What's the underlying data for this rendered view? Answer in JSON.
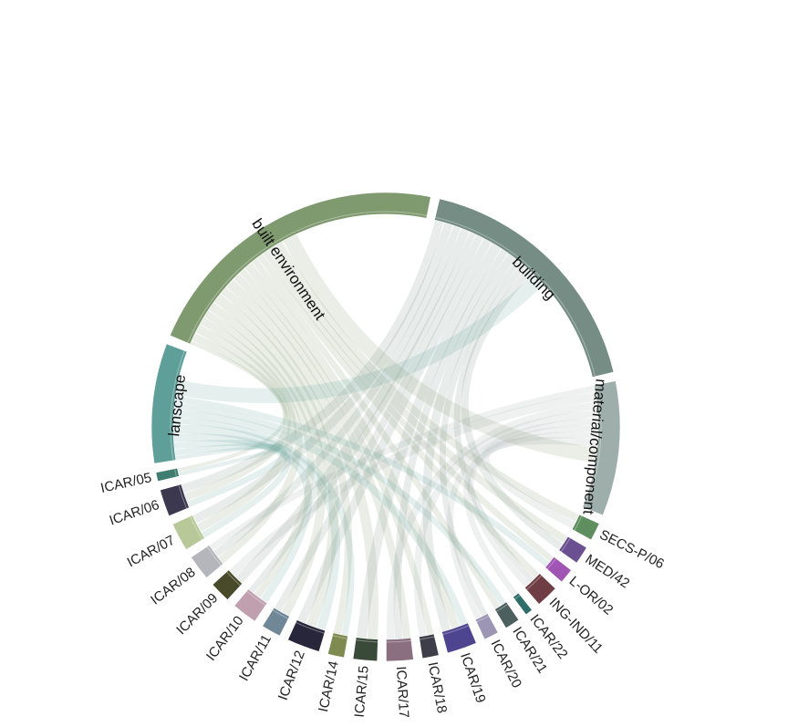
{
  "chart_data": {
    "type": "chord",
    "title": "",
    "groups": [
      {
        "name": "lanscape",
        "color": "#5f9f99",
        "value": 8
      },
      {
        "name": "built environment",
        "color": "#809a70",
        "value": 21
      },
      {
        "name": "building",
        "color": "#758d84",
        "value": 17
      },
      {
        "name": "material/component",
        "color": "#9eaeaa",
        "value": 9
      },
      {
        "name": "SECS-P/06",
        "color": "#5f8f5f",
        "value": 1.2
      },
      {
        "name": "MED/42",
        "color": "#6a5090",
        "value": 1.2
      },
      {
        "name": "L-OR/02",
        "color": "#a054b4",
        "value": 1
      },
      {
        "name": "ING-IND/11",
        "color": "#6e3e44",
        "value": 1.5
      },
      {
        "name": "ICAR/22",
        "color": "#2f6d6a",
        "value": 0.5
      },
      {
        "name": "ICAR/21",
        "color": "#4d6060",
        "value": 1
      },
      {
        "name": "ICAR/20",
        "color": "#9c96b4",
        "value": 1
      },
      {
        "name": "ICAR/19",
        "color": "#4d4590",
        "value": 2
      },
      {
        "name": "ICAR/18",
        "color": "#3e3e4a",
        "value": 1.1
      },
      {
        "name": "ICAR/17",
        "color": "#8a6f80",
        "value": 1.8
      },
      {
        "name": "ICAR/15",
        "color": "#3a4a38",
        "value": 1.6
      },
      {
        "name": "ICAR/14",
        "color": "#7d8a50",
        "value": 1.1
      },
      {
        "name": "ICAR/12",
        "color": "#28263a",
        "value": 2.2
      },
      {
        "name": "ICAR/11",
        "color": "#6f8796",
        "value": 1.3
      },
      {
        "name": "ICAR/10",
        "color": "#c0a0ae",
        "value": 1.7
      },
      {
        "name": "ICAR/09",
        "color": "#484a2a",
        "value": 1.4
      },
      {
        "name": "ICAR/08",
        "color": "#b4b6bc",
        "value": 1.7
      },
      {
        "name": "ICAR/07",
        "color": "#b8c898",
        "value": 1.9
      },
      {
        "name": "ICAR/06",
        "color": "#3b3850",
        "value": 1.8
      },
      {
        "name": "ICAR/05",
        "color": "#3f7d70",
        "value": 0.6
      }
    ],
    "links": [
      {
        "source": "ICAR/05",
        "target": "lanscape",
        "value": 0.3
      },
      {
        "source": "ICAR/05",
        "target": "built environment",
        "value": 0.3
      },
      {
        "source": "ICAR/06",
        "target": "lanscape",
        "value": 0.5
      },
      {
        "source": "ICAR/06",
        "target": "built environment",
        "value": 0.6
      },
      {
        "source": "ICAR/06",
        "target": "building",
        "value": 0.7
      },
      {
        "source": "ICAR/07",
        "target": "lanscape",
        "value": 0.5
      },
      {
        "source": "ICAR/07",
        "target": "built environment",
        "value": 0.7
      },
      {
        "source": "ICAR/07",
        "target": "building",
        "value": 0.7
      },
      {
        "source": "ICAR/08",
        "target": "built environment",
        "value": 0.6
      },
      {
        "source": "ICAR/08",
        "target": "building",
        "value": 0.6
      },
      {
        "source": "ICAR/08",
        "target": "material/component",
        "value": 0.5
      },
      {
        "source": "ICAR/09",
        "target": "building",
        "value": 0.7
      },
      {
        "source": "ICAR/09",
        "target": "material/component",
        "value": 0.7
      },
      {
        "source": "ICAR/10",
        "target": "lanscape",
        "value": 0.6
      },
      {
        "source": "ICAR/10",
        "target": "built environment",
        "value": 0.6
      },
      {
        "source": "ICAR/10",
        "target": "building",
        "value": 0.5
      },
      {
        "source": "ICAR/11",
        "target": "built environment",
        "value": 0.7
      },
      {
        "source": "ICAR/11",
        "target": "building",
        "value": 0.6
      },
      {
        "source": "ICAR/12",
        "target": "lanscape",
        "value": 0.7
      },
      {
        "source": "ICAR/12",
        "target": "built environment",
        "value": 0.8
      },
      {
        "source": "ICAR/12",
        "target": "building",
        "value": 0.7
      },
      {
        "source": "ICAR/14",
        "target": "lanscape",
        "value": 0.5
      },
      {
        "source": "ICAR/14",
        "target": "built environment",
        "value": 0.6
      },
      {
        "source": "ICAR/15",
        "target": "built environment",
        "value": 0.8
      },
      {
        "source": "ICAR/15",
        "target": "building",
        "value": 0.8
      },
      {
        "source": "ICAR/17",
        "target": "built environment",
        "value": 0.6
      },
      {
        "source": "ICAR/17",
        "target": "building",
        "value": 0.6
      },
      {
        "source": "ICAR/17",
        "target": "material/component",
        "value": 0.6
      },
      {
        "source": "ICAR/18",
        "target": "built environment",
        "value": 0.5
      },
      {
        "source": "ICAR/18",
        "target": "material/component",
        "value": 0.6
      },
      {
        "source": "ICAR/19",
        "target": "lanscape",
        "value": 0.6
      },
      {
        "source": "ICAR/19",
        "target": "built environment",
        "value": 0.7
      },
      {
        "source": "ICAR/19",
        "target": "building",
        "value": 0.7
      },
      {
        "source": "ICAR/20",
        "target": "building",
        "value": 0.5
      },
      {
        "source": "ICAR/20",
        "target": "material/component",
        "value": 0.5
      },
      {
        "source": "ICAR/21",
        "target": "lanscape",
        "value": 0.5
      },
      {
        "source": "ICAR/21",
        "target": "built environment",
        "value": 0.5
      },
      {
        "source": "ICAR/22",
        "target": "material/component",
        "value": 0.5
      },
      {
        "source": "ING-IND/11",
        "target": "built environment",
        "value": 0.5
      },
      {
        "source": "ING-IND/11",
        "target": "building",
        "value": 0.5
      },
      {
        "source": "ING-IND/11",
        "target": "material/component",
        "value": 0.5
      },
      {
        "source": "L-OR/02",
        "target": "built environment",
        "value": 0.5
      },
      {
        "source": "L-OR/02",
        "target": "lanscape",
        "value": 0.5
      },
      {
        "source": "MED/42",
        "target": "built environment",
        "value": 0.6
      },
      {
        "source": "MED/42",
        "target": "building",
        "value": 0.6
      },
      {
        "source": "SECS-P/06",
        "target": "built environment",
        "value": 0.6
      },
      {
        "source": "SECS-P/06",
        "target": "material/component",
        "value": 0.6
      },
      {
        "source": "lanscape",
        "target": "building",
        "value": 1.2
      },
      {
        "source": "built environment",
        "target": "material/component",
        "value": 1.2
      }
    ]
  }
}
